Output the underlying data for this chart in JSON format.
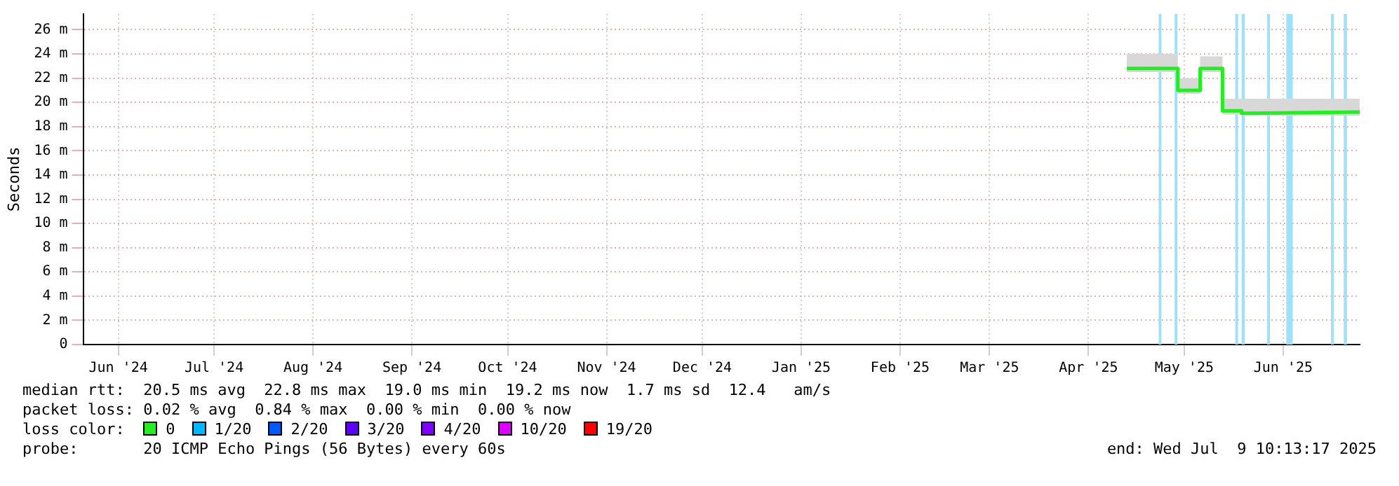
{
  "chart_data": {
    "type": "line",
    "ylabel": "Seconds",
    "legend_title": "loss color:",
    "legend": "bottom",
    "grid": true,
    "line_style": "solid",
    "marker": "none",
    "xlim": [
      "2024-06-04",
      "2025-07-09"
    ],
    "xticks": [
      {
        "value": "2024-06-15",
        "label": "Jun '24"
      },
      {
        "value": "2024-07-15",
        "label": "Jul '24"
      },
      {
        "value": "2024-08-15",
        "label": "Aug '24"
      },
      {
        "value": "2024-09-15",
        "label": "Sep '24"
      },
      {
        "value": "2024-10-15",
        "label": "Oct '24"
      },
      {
        "value": "2024-11-15",
        "label": "Nov '24"
      },
      {
        "value": "2024-12-15",
        "label": "Dec '24"
      },
      {
        "value": "2025-01-15",
        "label": "Jan '25"
      },
      {
        "value": "2025-02-15",
        "label": "Feb '25"
      },
      {
        "value": "2025-03-15",
        "label": "Mar '25"
      },
      {
        "value": "2025-04-15",
        "label": "Apr '25"
      },
      {
        "value": "2025-05-15",
        "label": "May '25"
      },
      {
        "value": "2025-06-15",
        "label": "Jun '25"
      }
    ],
    "ylim": [
      0,
      27.3
    ],
    "yticks": [
      0,
      {
        "value": 2,
        "label": "2 m"
      },
      {
        "value": 4,
        "label": "4 m"
      },
      {
        "value": 6,
        "label": "6 m"
      },
      {
        "value": 8,
        "label": "8 m"
      },
      {
        "value": 10,
        "label": "10 m"
      },
      {
        "value": 12,
        "label": "12 m"
      },
      {
        "value": 14,
        "label": "14 m"
      },
      {
        "value": 16,
        "label": "16 m"
      },
      {
        "value": 18,
        "label": "18 m"
      },
      {
        "value": 20,
        "label": "20 m"
      },
      {
        "value": 22,
        "label": "22 m"
      },
      {
        "value": 24,
        "label": "24 m"
      },
      {
        "value": 26,
        "label": "26 m"
      }
    ],
    "series": [
      {
        "name": "0",
        "color": "#22ee22",
        "x": [
          "2025-04-27",
          "2025-05-13",
          "2025-05-13",
          "2025-05-20",
          "2025-05-20",
          "2025-05-27",
          "2025-05-27",
          "2025-06-02",
          "2025-06-02",
          "2025-07-09"
        ],
        "values": [
          22.8,
          22.8,
          21.0,
          21.0,
          22.8,
          22.8,
          19.3,
          19.3,
          19.1,
          19.2
        ],
        "lower": [
          22.5,
          22.5,
          20.7,
          20.7,
          22.5,
          22.5,
          19.0,
          19.0,
          18.9,
          18.9
        ],
        "upper": [
          24.0,
          24.0,
          22.0,
          22.0,
          23.8,
          23.8,
          20.3,
          20.3,
          20.3,
          20.3
        ]
      },
      {
        "name": "1/20",
        "color": "#00b8ff"
      },
      {
        "name": "2/20",
        "color": "#0059ff"
      },
      {
        "name": "3/20",
        "color": "#5e00ff"
      },
      {
        "name": "4/20",
        "color": "#7e00ff"
      },
      {
        "name": "10/20",
        "color": "#dd00ff"
      },
      {
        "name": "19/20",
        "color": "#ff0000"
      }
    ],
    "bands": [
      {
        "axis": "x",
        "from": "2025-05-07",
        "to": "2025-05-07",
        "color": "#a0e0f8"
      },
      {
        "axis": "x",
        "from": "2025-05-12",
        "to": "2025-05-12",
        "color": "#a0e0f8"
      },
      {
        "axis": "x",
        "from": "2025-05-31",
        "to": "2025-05-31",
        "color": "#a0e0f8"
      },
      {
        "axis": "x",
        "from": "2025-06-02",
        "to": "2025-06-03",
        "color": "#a0e0f8"
      },
      {
        "axis": "x",
        "from": "2025-06-10",
        "to": "2025-06-10",
        "color": "#a0e0f8"
      },
      {
        "axis": "x",
        "from": "2025-06-16",
        "to": "2025-06-18",
        "color": "#a0e0f8"
      },
      {
        "axis": "x",
        "from": "2025-06-30",
        "to": "2025-06-30",
        "color": "#a0e0f8"
      },
      {
        "axis": "x",
        "from": "2025-07-04",
        "to": "2025-07-05",
        "color": "#a0e0f8"
      }
    ],
    "annotations": [
      "median rtt:  20.5 ms avg  22.8 ms max  19.0 ms min  19.2 ms now  1.7 ms sd  12.4   am/s",
      "packet loss: 0.02 % avg  0.84 % max  0.00 % min  0.00 % now",
      "probe:       20 ICMP Echo Pings (56 Bytes) every 60s",
      "end: Wed Jul  9 10:13:17 2025"
    ]
  }
}
